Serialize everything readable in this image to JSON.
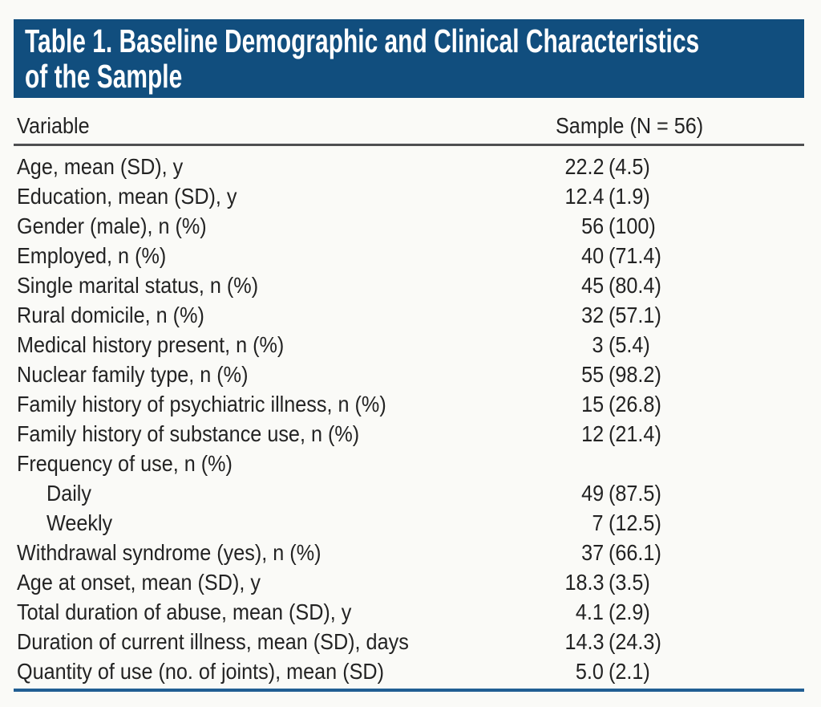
{
  "page": {
    "background": "#fafaf7"
  },
  "table": {
    "accent_color": "#114e7e",
    "header_rule_color": "#4e4f51",
    "bottom_rule_color": "#215e93",
    "title_lines": [
      "Table 1. Baseline Demographic and Clinical Characteristics",
      "of the Sample"
    ],
    "columns": {
      "variable": "Variable",
      "sample": "Sample (N = 56)"
    },
    "rows": [
      {
        "label": "Age, mean (SD), y",
        "n": "22.2",
        "pct": "(4.5)",
        "indent": false
      },
      {
        "label": "Education, mean (SD), y",
        "n": "12.4",
        "pct": "(1.9)",
        "indent": false
      },
      {
        "label": "Gender (male), n (%)",
        "n": "56",
        "pct": "(100)",
        "indent": false
      },
      {
        "label": "Employed, n (%)",
        "n": "40",
        "pct": "(71.4)",
        "indent": false
      },
      {
        "label": "Single marital status, n (%)",
        "n": "45",
        "pct": "(80.4)",
        "indent": false
      },
      {
        "label": "Rural domicile, n (%)",
        "n": "32",
        "pct": "(57.1)",
        "indent": false
      },
      {
        "label": "Medical history present, n (%)",
        "n": "3",
        "pct": "(5.4)",
        "indent": false
      },
      {
        "label": "Nuclear family type, n (%)",
        "n": "55",
        "pct": "(98.2)",
        "indent": false
      },
      {
        "label": "Family history of psychiatric illness, n (%)",
        "n": "15",
        "pct": "(26.8)",
        "indent": false
      },
      {
        "label": "Family history of substance use, n (%)",
        "n": "12",
        "pct": "(21.4)",
        "indent": false
      },
      {
        "label": "Frequency of use, n (%)",
        "n": "",
        "pct": "",
        "indent": false
      },
      {
        "label": "Daily",
        "n": "49",
        "pct": "(87.5)",
        "indent": true
      },
      {
        "label": "Weekly",
        "n": "7",
        "pct": "(12.5)",
        "indent": true
      },
      {
        "label": "Withdrawal syndrome (yes), n (%)",
        "n": "37",
        "pct": "(66.1)",
        "indent": false
      },
      {
        "label": "Age at onset, mean (SD), y",
        "n": "18.3",
        "pct": "(3.5)",
        "indent": false
      },
      {
        "label": "Total duration of abuse, mean (SD), y",
        "n": "4.1",
        "pct": "(2.9)",
        "indent": false
      },
      {
        "label": "Duration of current illness, mean (SD), days",
        "n": "14.3",
        "pct": "(24.3)",
        "indent": false
      },
      {
        "label": "Quantity of use (no. of joints), mean (SD)",
        "n": "5.0",
        "pct": "(2.1)",
        "indent": false
      }
    ]
  }
}
